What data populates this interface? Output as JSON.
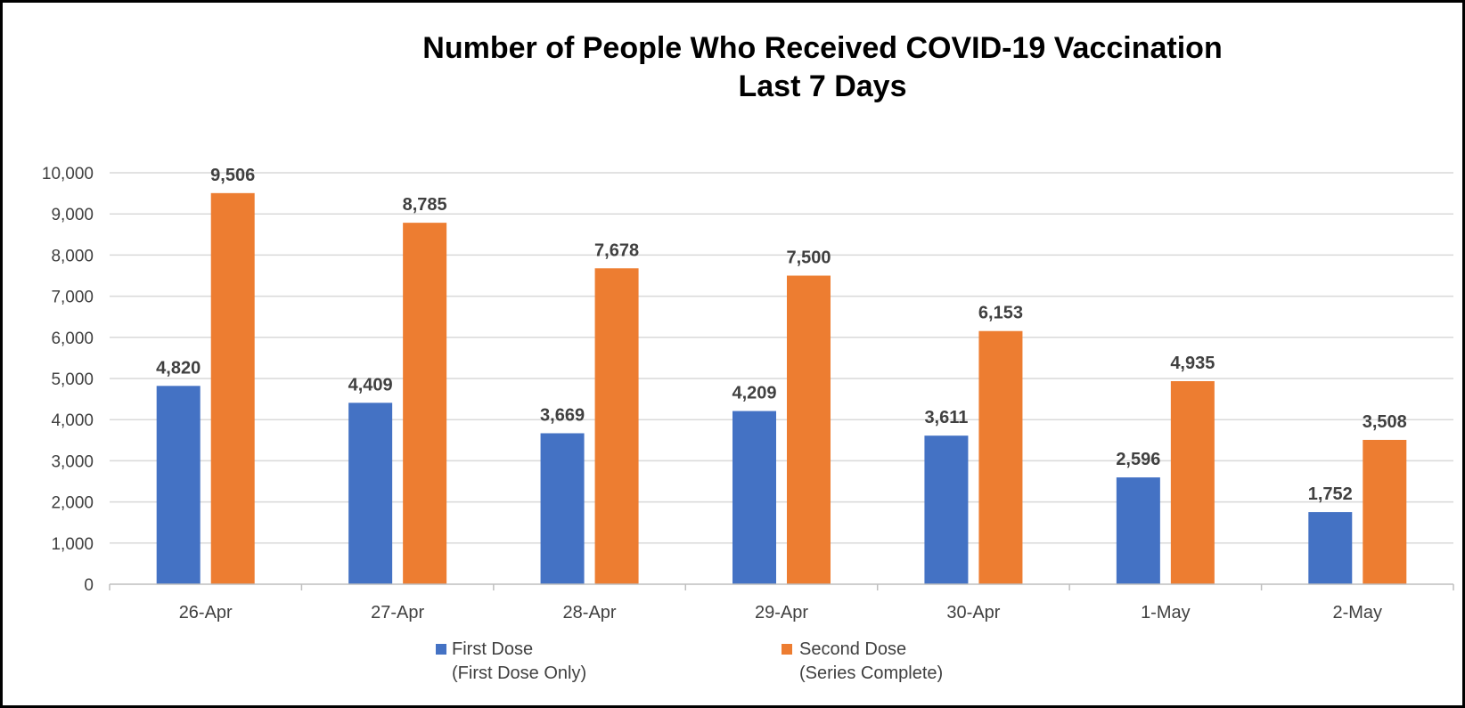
{
  "chart_data": {
    "type": "bar",
    "title": [
      "Number of People Who Received COVID-19 Vaccination",
      "Last 7 Days"
    ],
    "categories": [
      "26-Apr",
      "27-Apr",
      "28-Apr",
      "29-Apr",
      "30-Apr",
      "1-May",
      "2-May"
    ],
    "series": [
      {
        "name": [
          "First Dose",
          "(First Dose Only)"
        ],
        "color": "#4472C4",
        "values": [
          4820,
          4409,
          3669,
          4209,
          3611,
          2596,
          1752
        ],
        "labels": [
          "4,820",
          "4,409",
          "3,669",
          "4,209",
          "3,611",
          "2,596",
          "1,752"
        ]
      },
      {
        "name": [
          "Second Dose",
          "(Series Complete)"
        ],
        "color": "#ED7D31",
        "values": [
          9506,
          8785,
          7678,
          7500,
          6153,
          4935,
          3508
        ],
        "labels": [
          "9,506",
          "8,785",
          "7,678",
          "7,500",
          "6,153",
          "4,935",
          "3,508"
        ]
      }
    ],
    "ylim": [
      0,
      10000
    ],
    "yticks": [
      0,
      1000,
      2000,
      3000,
      4000,
      5000,
      6000,
      7000,
      8000,
      9000,
      10000
    ],
    "ytick_labels": [
      "0",
      "1,000",
      "2,000",
      "3,000",
      "4,000",
      "5,000",
      "6,000",
      "7,000",
      "8,000",
      "9,000",
      "10,000"
    ],
    "grid": true,
    "legend": "bottom-center"
  }
}
